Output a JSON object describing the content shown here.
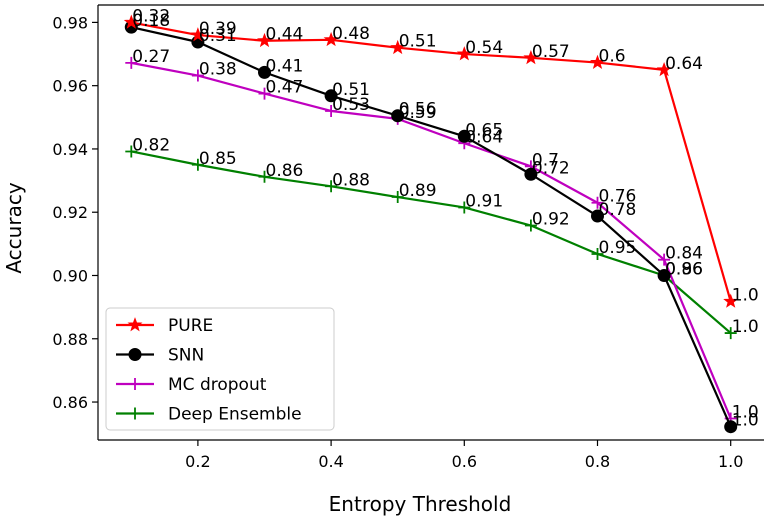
{
  "chart_data": {
    "type": "line",
    "xlabel": "Entropy Threshold",
    "ylabel": "Accuracy",
    "xlim": [
      0.05,
      1.05
    ],
    "ylim": [
      0.848,
      0.9855
    ],
    "xticks": [
      0.2,
      0.4,
      0.6,
      0.8,
      1.0
    ],
    "xtick_labels": [
      "0.2",
      "0.4",
      "0.6",
      "0.8",
      "1.0"
    ],
    "yticks": [
      0.86,
      0.88,
      0.9,
      0.92,
      0.94,
      0.96,
      0.98
    ],
    "ytick_labels": [
      "0.86",
      "0.88",
      "0.90",
      "0.92",
      "0.94",
      "0.96",
      "0.98"
    ],
    "legend_position": "lower-left",
    "x": [
      0.1,
      0.2,
      0.3,
      0.4,
      0.5,
      0.6,
      0.7,
      0.8,
      0.9,
      1.0
    ],
    "series": [
      {
        "name": "PURE",
        "color": "#ff0000",
        "marker": "star",
        "values": [
          0.98,
          0.976,
          0.9742,
          0.9745,
          0.972,
          0.97,
          0.9688,
          0.9673,
          0.965,
          0.8918
        ],
        "labels": [
          "0.32",
          "0.39",
          "0.44",
          "0.48",
          "0.51",
          "0.54",
          "0.57",
          "0.6",
          "0.64",
          "1.0"
        ]
      },
      {
        "name": "SNN",
        "color": "#000000",
        "marker": "circle",
        "values": [
          0.9785,
          0.9738,
          0.9642,
          0.9568,
          0.9505,
          0.944,
          0.932,
          0.9188,
          0.9,
          0.8522
        ],
        "labels": [
          "0.18",
          "0.31",
          "0.41",
          "0.51",
          "0.56",
          "0.65",
          "0.72",
          "0.78",
          "0.86",
          "1.0"
        ]
      },
      {
        "name": "MC dropout",
        "color": "#bf00bf",
        "marker": "plus",
        "values": [
          0.9672,
          0.9632,
          0.9575,
          0.952,
          0.9495,
          0.9418,
          0.9345,
          0.923,
          0.905,
          0.8548
        ],
        "labels": [
          "0.27",
          "0.38",
          "0.47",
          "0.53",
          "0.59",
          "0.64",
          "0.7",
          "0.76",
          "0.84",
          "1.0"
        ]
      },
      {
        "name": "Deep Ensemble",
        "color": "#008000",
        "marker": "plus",
        "values": [
          0.9392,
          0.935,
          0.9312,
          0.9282,
          0.9248,
          0.9215,
          0.9158,
          0.9068,
          0.9,
          0.8818
        ],
        "labels": [
          "0.82",
          "0.85",
          "0.86",
          "0.88",
          "0.89",
          "0.91",
          "0.92",
          "0.95",
          "0.96",
          "1.0"
        ]
      }
    ]
  }
}
